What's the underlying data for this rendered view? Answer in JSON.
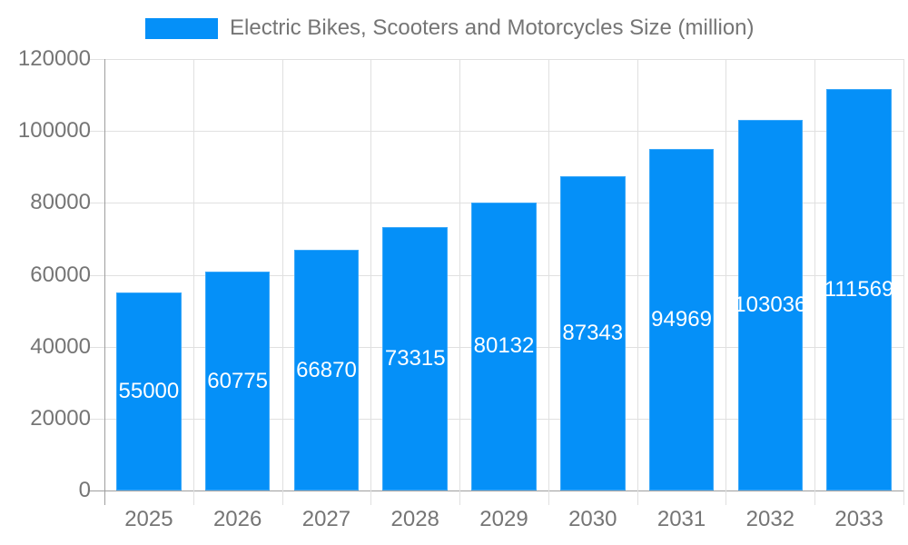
{
  "chart_data": {
    "type": "bar",
    "title": "Electric Bikes, Scooters and Motorcycles Size (million)",
    "legend": {
      "label": "Electric Bikes, Scooters and Motorcycles Size (million)",
      "position": "top"
    },
    "categories": [
      "2025",
      "2026",
      "2027",
      "2028",
      "2029",
      "2030",
      "2031",
      "2032",
      "2033"
    ],
    "series": [
      {
        "name": "Electric Bikes, Scooters and Motorcycles Size (million)",
        "values": [
          55000,
          60775,
          66870,
          73315,
          80132,
          87343,
          94969,
          103036,
          111569
        ]
      }
    ],
    "value_labels_visible": true,
    "xlabel": "",
    "ylabel": "",
    "ylim": [
      0,
      120000
    ],
    "yticks": [
      0,
      20000,
      40000,
      60000,
      80000,
      100000,
      120000
    ],
    "grid": "on",
    "colors": {
      "bar": "#0590f8",
      "grid_line": "#e0e0e0",
      "axis_line": "#9e9e9e",
      "tick_label": "#757575",
      "legend_text": "#757575",
      "value_label": "#ffffff",
      "background": "#ffffff"
    }
  }
}
